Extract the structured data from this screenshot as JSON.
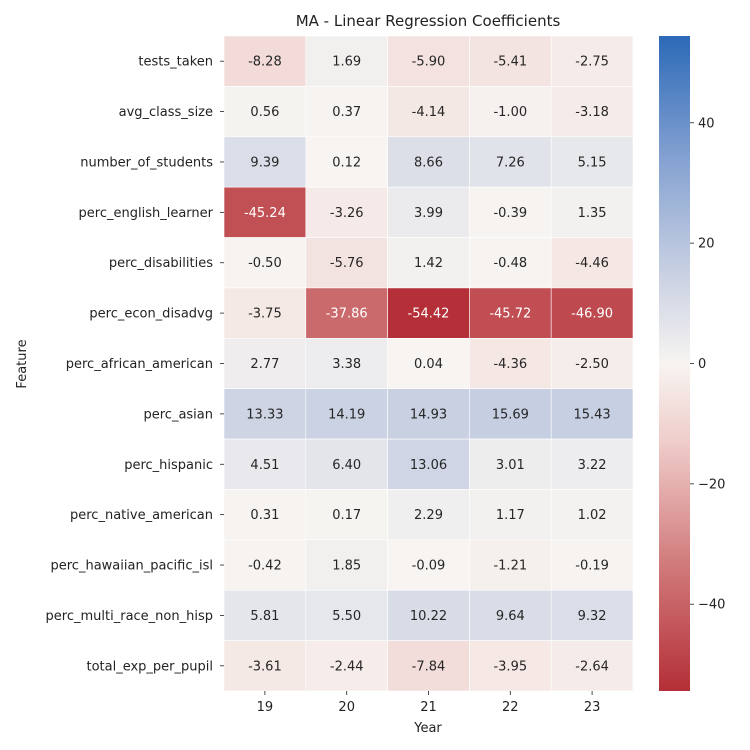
{
  "chart_data": {
    "type": "heatmap",
    "title": "MA - Linear Regression Coefficients",
    "xlabel": "Year",
    "ylabel": "Feature",
    "x": [
      "19",
      "20",
      "21",
      "22",
      "23"
    ],
    "y": [
      "tests_taken",
      "avg_class_size",
      "number_of_students",
      "perc_english_learner",
      "perc_disabilities",
      "perc_econ_disadvg",
      "perc_african_american",
      "perc_asian",
      "perc_hispanic",
      "perc_native_american",
      "perc_hawaiian_pacific_isl",
      "perc_multi_race_non_hisp",
      "total_exp_per_pupil"
    ],
    "values": [
      [
        -8.28,
        1.69,
        -5.9,
        -5.41,
        -2.75
      ],
      [
        0.56,
        0.37,
        -4.14,
        -1.0,
        -3.18
      ],
      [
        9.39,
        0.12,
        8.66,
        7.26,
        5.15
      ],
      [
        -45.24,
        -3.26,
        3.99,
        -0.39,
        1.35
      ],
      [
        -0.5,
        -5.76,
        1.42,
        -0.48,
        -4.46
      ],
      [
        -3.75,
        -37.86,
        -54.42,
        -45.72,
        -46.9
      ],
      [
        2.77,
        3.38,
        0.04,
        -4.36,
        -2.5
      ],
      [
        13.33,
        14.19,
        14.93,
        15.69,
        15.43
      ],
      [
        4.51,
        6.4,
        13.06,
        3.01,
        3.22
      ],
      [
        0.31,
        0.17,
        2.29,
        1.17,
        1.02
      ],
      [
        -0.42,
        1.85,
        -0.09,
        -1.21,
        -0.19
      ],
      [
        5.81,
        5.5,
        10.22,
        9.64,
        9.32
      ],
      [
        -3.61,
        -2.44,
        -7.84,
        -3.95,
        -2.64
      ]
    ],
    "colormap": "vlag",
    "vmin": -54.42,
    "vmax": 54.42,
    "colorbar_ticks": [
      -40,
      -20,
      0,
      20,
      40
    ],
    "colorbar_tick_labels": [
      "−40",
      "−20",
      "0",
      "20",
      "40"
    ],
    "colors": {
      "low": "#b42f37",
      "mid": "#f7f4f1",
      "high": "#2c69b7"
    }
  }
}
